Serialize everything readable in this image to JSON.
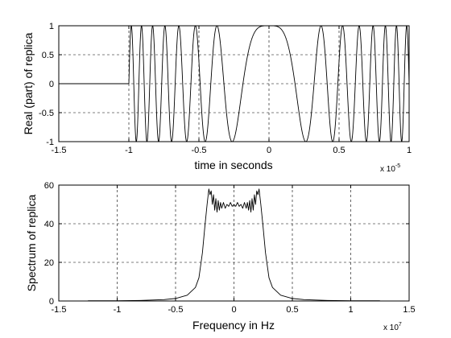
{
  "chart_data": [
    {
      "type": "line",
      "title": "",
      "xlabel": "time in seconds",
      "ylabel": "Real (part) of replica",
      "x_exponent_base": "x 10",
      "x_exponent": "-5",
      "xlim": [
        -1.5,
        1.0
      ],
      "ylim": [
        -1,
        1
      ],
      "xticks": [
        "-1.5",
        "-1",
        "-0.5",
        "0",
        "0.5",
        "1"
      ],
      "xtick_values": [
        -1.5,
        -1.0,
        -0.5,
        0.0,
        0.5,
        1.0
      ],
      "yticks": [
        "-1",
        "-0.5",
        "0",
        "0.5",
        "1"
      ],
      "ytick_values": [
        -1,
        -0.5,
        0,
        0.5,
        1
      ],
      "grid": true,
      "series": [
        {
          "signal": "linear FM chirp, real part cos(pi*k*t^2), nonzero for -1 <= t <= 1 (x 1e-5 s)",
          "chirp_k_per_unit2": 14.5,
          "support": [
            -1.0,
            1.0
          ],
          "zero_outside_support": true
        }
      ]
    },
    {
      "type": "line",
      "title": "",
      "xlabel": "Frequency in Hz",
      "ylabel": "Spectrum of replica",
      "x_exponent_base": "x 10",
      "x_exponent": "7",
      "xlim": [
        -1.5,
        1.5
      ],
      "ylim": [
        0,
        60
      ],
      "xticks": [
        "-1.5",
        "-1",
        "-0.5",
        "0",
        "0.5",
        "1",
        "1.5"
      ],
      "xtick_values": [
        -1.5,
        -1.0,
        -0.5,
        0.0,
        0.5,
        1.0,
        1.5
      ],
      "yticks": [
        "0",
        "20",
        "40",
        "60"
      ],
      "ytick_values": [
        0,
        20,
        40,
        60
      ],
      "grid": true,
      "series": [
        {
          "points": [
            [
              -1.25,
              0.1
            ],
            [
              -1.0,
              0.15
            ],
            [
              -0.8,
              0.3
            ],
            [
              -0.6,
              0.7
            ],
            [
              -0.5,
              1.3
            ],
            [
              -0.4,
              3.0
            ],
            [
              -0.33,
              7
            ],
            [
              -0.3,
              12
            ],
            [
              -0.27,
              25
            ],
            [
              -0.25,
              38
            ],
            [
              -0.23,
              50
            ],
            [
              -0.215,
              58
            ],
            [
              -0.205,
              55
            ],
            [
              -0.195,
              57
            ],
            [
              -0.185,
              50
            ],
            [
              -0.175,
              55
            ],
            [
              -0.165,
              47
            ],
            [
              -0.155,
              53
            ],
            [
              -0.145,
              46
            ],
            [
              -0.135,
              52
            ],
            [
              -0.125,
              47
            ],
            [
              -0.115,
              51
            ],
            [
              -0.105,
              48
            ],
            [
              -0.09,
              51
            ],
            [
              -0.075,
              48
            ],
            [
              -0.06,
              50
            ],
            [
              -0.045,
              49
            ],
            [
              -0.03,
              51
            ],
            [
              -0.015,
              49
            ],
            [
              0.0,
              50
            ],
            [
              0.015,
              49
            ],
            [
              0.03,
              51
            ],
            [
              0.045,
              49
            ],
            [
              0.06,
              50
            ],
            [
              0.075,
              48
            ],
            [
              0.09,
              51
            ],
            [
              0.105,
              48
            ],
            [
              0.115,
              51
            ],
            [
              0.125,
              47
            ],
            [
              0.135,
              52
            ],
            [
              0.145,
              46
            ],
            [
              0.155,
              53
            ],
            [
              0.165,
              47
            ],
            [
              0.175,
              55
            ],
            [
              0.185,
              50
            ],
            [
              0.195,
              57
            ],
            [
              0.205,
              55
            ],
            [
              0.215,
              58
            ],
            [
              0.23,
              50
            ],
            [
              0.25,
              38
            ],
            [
              0.27,
              25
            ],
            [
              0.3,
              12
            ],
            [
              0.33,
              7
            ],
            [
              0.4,
              3.0
            ],
            [
              0.5,
              1.3
            ],
            [
              0.6,
              0.7
            ],
            [
              0.8,
              0.3
            ],
            [
              1.0,
              0.15
            ],
            [
              1.25,
              0.1
            ]
          ]
        }
      ]
    }
  ]
}
